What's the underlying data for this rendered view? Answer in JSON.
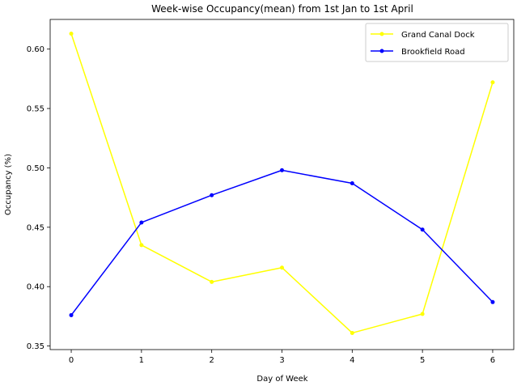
{
  "chart_data": {
    "type": "line",
    "title": "Week-wise Occupancy(mean) from 1st Jan to 1st April",
    "xlabel": "Day of Week",
    "ylabel": "Occupancy (%)",
    "x": [
      0,
      1,
      2,
      3,
      4,
      5,
      6
    ],
    "xlim": [
      -0.3,
      6.3
    ],
    "ylim": [
      0.347,
      0.625
    ],
    "xticks": [
      0,
      1,
      2,
      3,
      4,
      5,
      6
    ],
    "yticks": [
      0.35,
      0.4,
      0.45,
      0.5,
      0.55,
      0.6
    ],
    "ytick_labels": [
      "0.35",
      "0.40",
      "0.45",
      "0.50",
      "0.55",
      "0.60"
    ],
    "grid": false,
    "legend_position": "top-right",
    "series": [
      {
        "name": "Grand Canal Dock",
        "color": "#ffff00",
        "values": [
          0.613,
          0.435,
          0.404,
          0.416,
          0.361,
          0.377,
          0.572
        ]
      },
      {
        "name": "Brookfield Road",
        "color": "#0000ff",
        "values": [
          0.376,
          0.454,
          0.477,
          0.498,
          0.487,
          0.448,
          0.387
        ]
      }
    ]
  }
}
